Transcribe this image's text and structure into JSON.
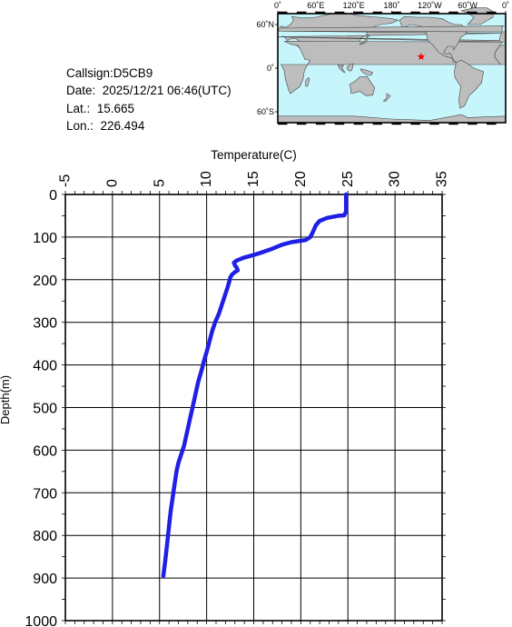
{
  "info": {
    "callsign": "Callsign:D5CB9",
    "date": "Date:  2025/12/21 06:46(UTC)",
    "lat": "Lat.:  15.665",
    "lon": "Lon.:  226.494"
  },
  "map": {
    "lon_labels": [
      "0˚",
      "60˚E",
      "120˚E",
      "180˚",
      "120˚W",
      "60˚W",
      "0˚"
    ],
    "lat_labels": [
      "60˚N",
      "0˚",
      "60˚S"
    ],
    "ocean_color": "#c7f5fc",
    "land_color": "#bdbdbd",
    "marker": {
      "lat": 15.665,
      "lon": 226.494,
      "color": "#ff0000",
      "icon": "star-icon"
    }
  },
  "chart_data": {
    "type": "line",
    "xlabel": "Temperature(C)",
    "ylabel": "Depth(m)",
    "xlim": [
      -5,
      35
    ],
    "ylim": [
      0,
      1000
    ],
    "y_inverted": true,
    "x_ticks": [
      -5,
      0,
      5,
      10,
      15,
      20,
      25,
      30,
      35
    ],
    "y_ticks": [
      0,
      100,
      200,
      300,
      400,
      500,
      600,
      700,
      800,
      900,
      1000
    ],
    "grid": true,
    "series": [
      {
        "color": "#1f1fe6",
        "points": [
          [
            24.8,
            0
          ],
          [
            24.8,
            20
          ],
          [
            24.8,
            40
          ],
          [
            24.6,
            49
          ],
          [
            24.0,
            50
          ],
          [
            22.8,
            55
          ],
          [
            22.0,
            62
          ],
          [
            21.6,
            72
          ],
          [
            21.4,
            82
          ],
          [
            21.2,
            92
          ],
          [
            21.0,
            100
          ],
          [
            20.5,
            107
          ],
          [
            19.0,
            112
          ],
          [
            18.0,
            118
          ],
          [
            17.0,
            127
          ],
          [
            16.0,
            135
          ],
          [
            15.0,
            142
          ],
          [
            14.0,
            148
          ],
          [
            13.2,
            155
          ],
          [
            12.9,
            160
          ],
          [
            13.0,
            166
          ],
          [
            13.2,
            172
          ],
          [
            13.3,
            178
          ],
          [
            13.0,
            182
          ],
          [
            12.7,
            188
          ],
          [
            12.5,
            195
          ],
          [
            12.4,
            205
          ],
          [
            12.2,
            220
          ],
          [
            11.9,
            240
          ],
          [
            11.6,
            260
          ],
          [
            11.3,
            280
          ],
          [
            10.9,
            300
          ],
          [
            10.6,
            320
          ],
          [
            10.3,
            345
          ],
          [
            10.0,
            370
          ],
          [
            9.7,
            392
          ],
          [
            9.5,
            410
          ],
          [
            9.1,
            440
          ],
          [
            8.8,
            470
          ],
          [
            8.5,
            500
          ],
          [
            8.2,
            530
          ],
          [
            7.9,
            560
          ],
          [
            7.6,
            590
          ],
          [
            7.3,
            610
          ],
          [
            7.0,
            630
          ],
          [
            6.8,
            650
          ],
          [
            6.6,
            680
          ],
          [
            6.4,
            710
          ],
          [
            6.2,
            740
          ],
          [
            6.0,
            780
          ],
          [
            5.8,
            820
          ],
          [
            5.6,
            860
          ],
          [
            5.4,
            895
          ]
        ]
      }
    ]
  }
}
